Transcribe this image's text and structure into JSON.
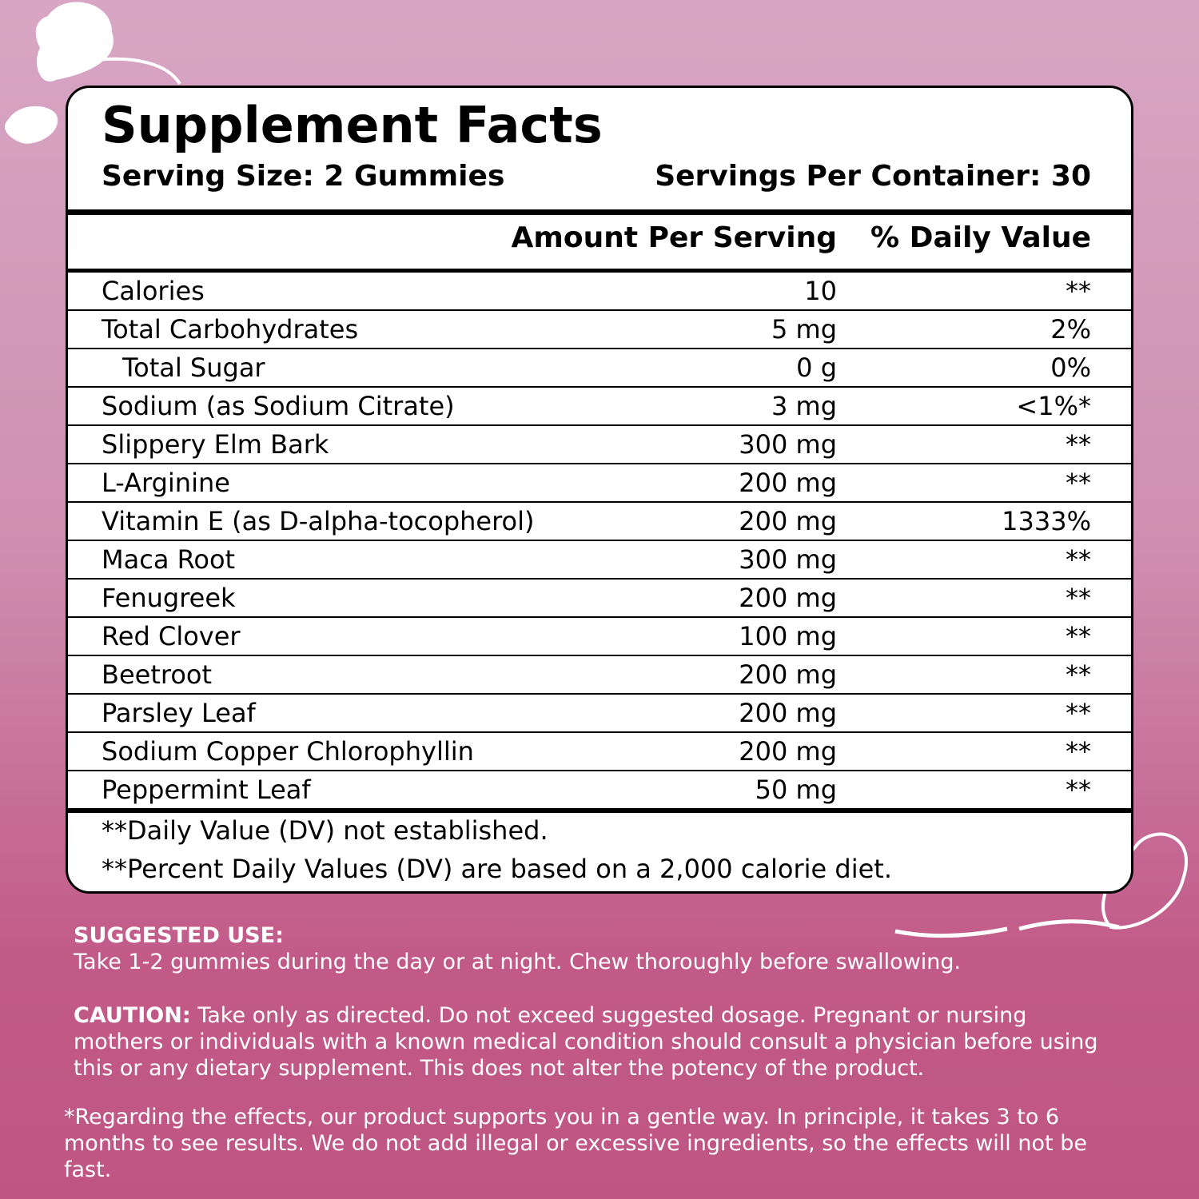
{
  "panel": {
    "title": "Supplement Facts",
    "serving_size": "Serving Size: 2 Gummies",
    "servings_per_container": "Servings Per Container: 30",
    "columns": [
      "Amount Per Serving",
      "% Daily Value"
    ],
    "rows": [
      [
        "Calories",
        "10",
        "**"
      ],
      [
        "Total Carbohydrates",
        "5 mg",
        "2%"
      ],
      [
        "Total Sugar",
        "0 g",
        "0%"
      ],
      [
        "Sodium (as Sodium Citrate)",
        "3 mg",
        "<1%*"
      ],
      [
        "Slippery Elm Bark",
        "300 mg",
        "**"
      ],
      [
        "L-Arginine",
        "200 mg",
        "**"
      ],
      [
        "Vitamin E (as D-alpha-tocopherol)",
        "200 mg",
        "1333%"
      ],
      [
        "Maca Root",
        "300 mg",
        "**"
      ],
      [
        "Fenugreek",
        "200 mg",
        "**"
      ],
      [
        "Red Clover",
        "100 mg",
        "**"
      ],
      [
        "Beetroot",
        "200 mg",
        "**"
      ],
      [
        "Parsley Leaf",
        "200 mg",
        "**"
      ],
      [
        "Sodium Copper Chlorophyllin",
        "200 mg",
        "**"
      ],
      [
        "Peppermint Leaf",
        "50 mg",
        "**"
      ]
    ],
    "footnotes": [
      "**Daily Value (DV) not established.",
      "**Percent Daily Values (DV) are based on a 2,000 calorie diet."
    ]
  },
  "suggested_use": {
    "heading": "SUGGESTED USE:",
    "text": "Take 1-2 gummies during the day or at night. Chew thoroughly before swallowing."
  },
  "caution": {
    "heading": "CAUTION:",
    "text": "Take only as directed. Do not exceed suggested dosage. Pregnant or nursing mothers or individuals with a known medical condition should consult a physician before using this or any dietary supplement. This does not alter the potency of the product."
  },
  "note": "*Regarding the effects, our product supports you in a gentle way. In principle, it takes 3 to 6 months to see results. We do not add illegal or excessive ingredients, so the effects will not be fast."
}
